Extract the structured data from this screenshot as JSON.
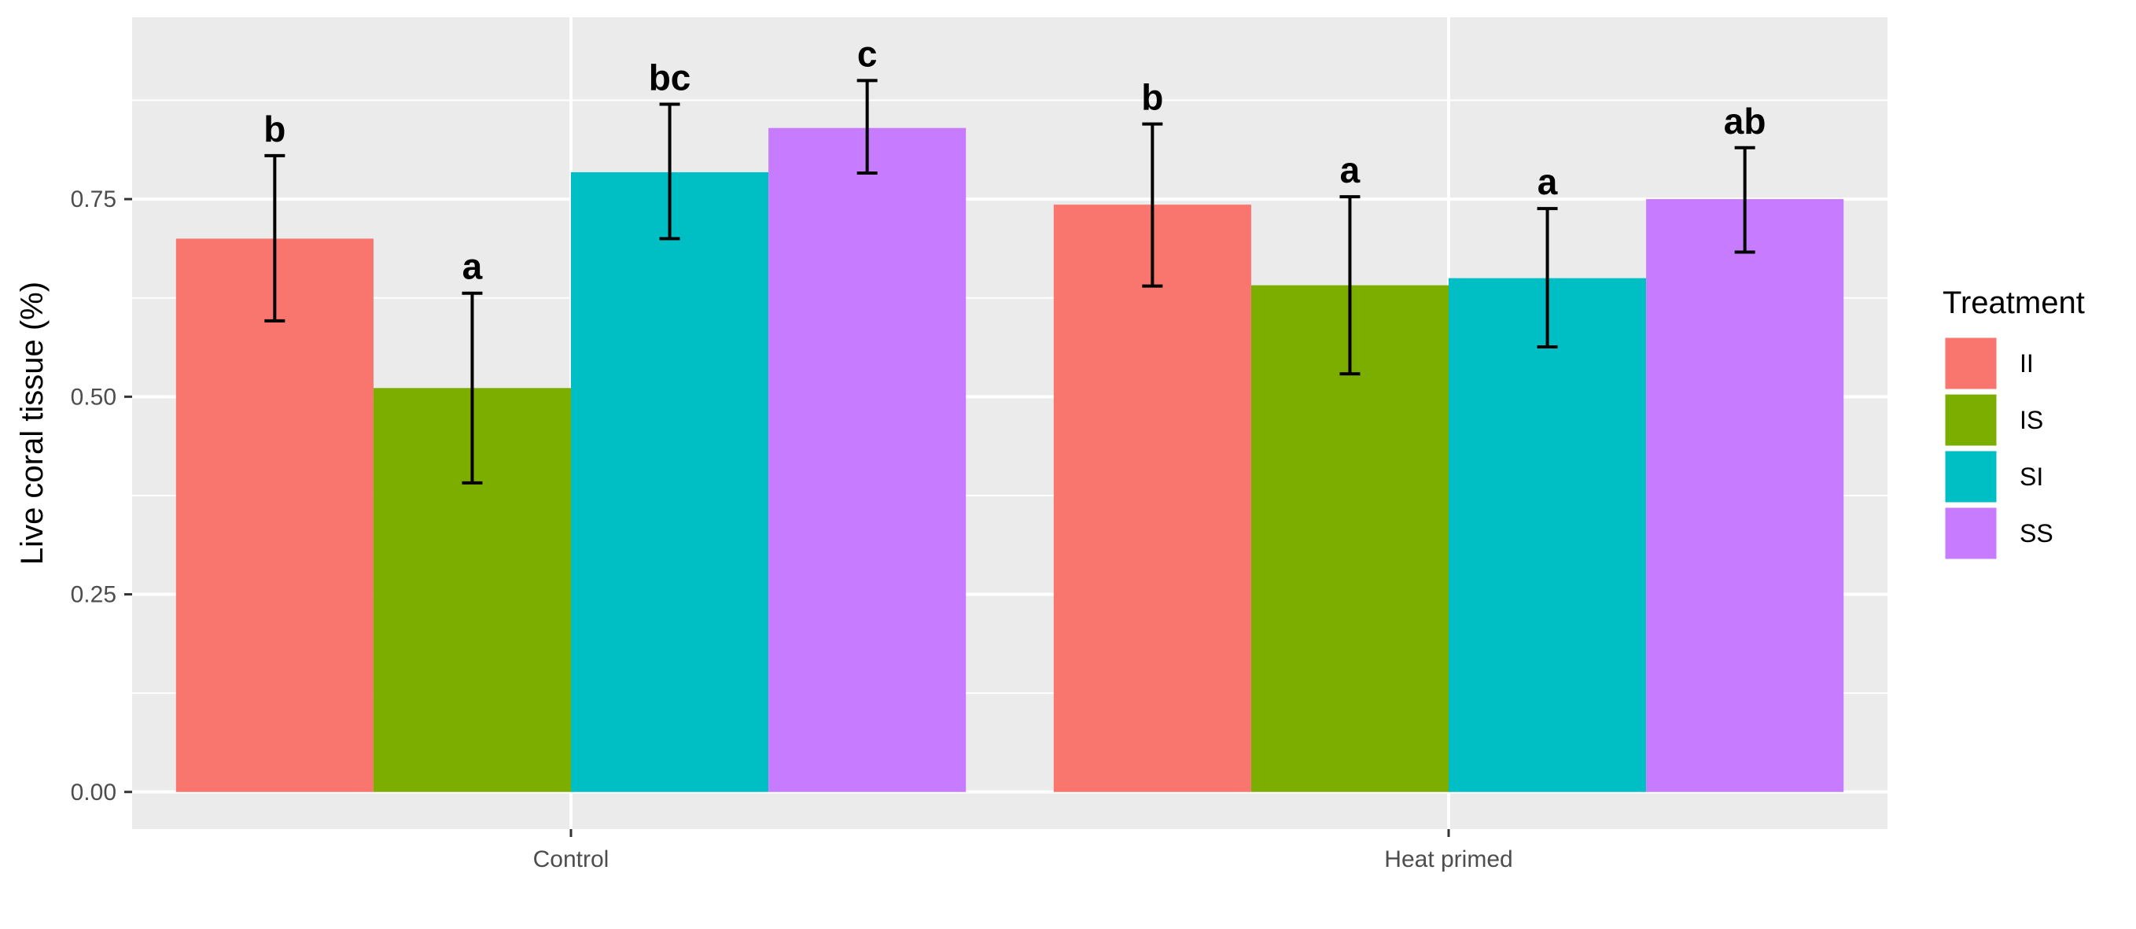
{
  "chart_data": {
    "type": "bar",
    "xlabel": "",
    "ylabel": "Live coral tissue (%)",
    "categories": [
      "Control",
      "Heat primed"
    ],
    "ylim": [
      -0.047,
      0.98
    ],
    "y_ticks": [
      0.0,
      0.25,
      0.5,
      0.75
    ],
    "y_tick_labels": [
      "0.00",
      "0.25",
      "0.50",
      "0.75"
    ],
    "grid": true,
    "legend": {
      "title": "Treatment",
      "position": "right"
    },
    "series": [
      {
        "name": "II",
        "color": "#F8766D",
        "values": [
          0.7,
          0.743
        ],
        "err_low": [
          0.596,
          0.64
        ],
        "err_high": [
          0.805,
          0.845
        ],
        "labels": [
          "b",
          "b"
        ]
      },
      {
        "name": "IS",
        "color": "#7CAE00",
        "values": [
          0.511,
          0.641
        ],
        "err_low": [
          0.391,
          0.529
        ],
        "err_high": [
          0.631,
          0.753
        ],
        "labels": [
          "a",
          "a"
        ]
      },
      {
        "name": "SI",
        "color": "#00BFC4",
        "values": [
          0.784,
          0.65
        ],
        "err_low": [
          0.7,
          0.563
        ],
        "err_high": [
          0.87,
          0.738
        ],
        "labels": [
          "bc",
          "a"
        ]
      },
      {
        "name": "SS",
        "color": "#C77CFF",
        "values": [
          0.84,
          0.75
        ],
        "err_low": [
          0.783,
          0.683
        ],
        "err_high": [
          0.9,
          0.815
        ],
        "labels": [
          "c",
          "ab"
        ]
      }
    ]
  }
}
